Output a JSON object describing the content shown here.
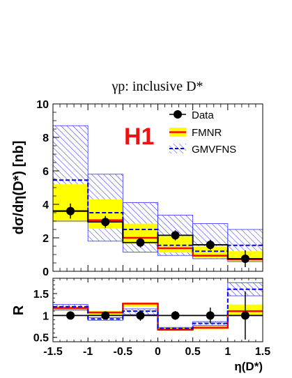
{
  "chart_data": [
    {
      "type": "bar",
      "title": "γp:  inclusive D*",
      "ylabel": "dσ/dη(D*) [nb]",
      "xlabel": "",
      "xlim": [
        -1.5,
        1.5
      ],
      "ylim": [
        0,
        10
      ],
      "xticks": [
        "-1.5",
        "-1",
        "-0.5",
        "0",
        "0.5",
        "1",
        "1.5"
      ],
      "yticks": [
        "0",
        "2",
        "4",
        "6",
        "8",
        "10"
      ],
      "bin_edges": [
        -1.5,
        -1,
        -0.5,
        0,
        0.5,
        1,
        1.5
      ],
      "experiment_label": "H1",
      "legend_placement": "top-right",
      "series": [
        {
          "name": "Data",
          "kind": "points",
          "color": "#000000",
          "x": [
            -1.25,
            -0.75,
            -0.25,
            0.25,
            0.75,
            1.25
          ],
          "y": [
            3.6,
            2.95,
            1.72,
            2.15,
            1.58,
            0.75
          ],
          "err": [
            0.45,
            0.35,
            0.3,
            0.3,
            0.3,
            0.5
          ]
        },
        {
          "name": "FMNR",
          "kind": "band",
          "line_color": "#ff0000",
          "fill_color": "#ffff00",
          "central": [
            3.6,
            3.05,
            2.0,
            1.38,
            0.93,
            0.72
          ],
          "low": [
            2.95,
            2.55,
            1.65,
            1.12,
            0.78,
            0.58
          ],
          "high": [
            5.2,
            4.3,
            2.85,
            2.1,
            1.5,
            1.2
          ]
        },
        {
          "name": "GMVFNS",
          "kind": "band",
          "line_color": "#0000ff",
          "hatch_color": "#3030ff",
          "central": [
            5.45,
            3.5,
            2.5,
            1.55,
            1.2,
            1.55
          ],
          "low": [
            3.0,
            1.8,
            1.15,
            0.95,
            0.75,
            0.58
          ],
          "high": [
            8.7,
            5.8,
            4.1,
            3.35,
            2.85,
            2.5
          ]
        }
      ]
    },
    {
      "type": "bar",
      "title": "",
      "ylabel": "R",
      "xlabel": "η(D*)",
      "xlim": [
        -1.5,
        1.5
      ],
      "ylim": [
        0.4,
        1.85
      ],
      "xticks": [
        "-1.5",
        "-1",
        "-0.5",
        "0",
        "0.5",
        "1",
        "1.5"
      ],
      "yticks": [
        "0.5",
        "1",
        "1.5"
      ],
      "bin_edges": [
        -1.5,
        -1,
        -0.5,
        0,
        0.5,
        1,
        1.5
      ],
      "reference_line": 1,
      "series": [
        {
          "name": "Data",
          "kind": "points",
          "color": "#000000",
          "x": [
            -1.25,
            -0.75,
            -0.25,
            0.25,
            0.75,
            1.25
          ],
          "y": [
            1.0,
            1.0,
            1.0,
            1.0,
            1.0,
            1.0
          ],
          "err": [
            0.05,
            0.06,
            0.12,
            0.1,
            0.18,
            0.55
          ]
        },
        {
          "name": "FMNR",
          "kind": "band",
          "line_color": "#ff0000",
          "fill_color": "#ffff00",
          "central": [
            1.17,
            1.07,
            1.27,
            0.68,
            0.72,
            1.1
          ],
          "low": [
            1.1,
            1.02,
            1.2,
            0.65,
            0.68,
            0.98
          ],
          "high": [
            1.2,
            1.1,
            1.3,
            0.72,
            0.78,
            1.25
          ]
        },
        {
          "name": "GMVFNS",
          "kind": "band",
          "line_color": "#0000ff",
          "hatch_color": "#3030ff",
          "central": [
            1.2,
            0.92,
            1.1,
            0.7,
            0.82,
            1.6
          ],
          "low": [
            1.13,
            0.89,
            1.02,
            0.66,
            0.77,
            1.45
          ],
          "high": [
            1.25,
            0.95,
            1.15,
            0.73,
            0.86,
            1.75
          ]
        }
      ]
    }
  ]
}
